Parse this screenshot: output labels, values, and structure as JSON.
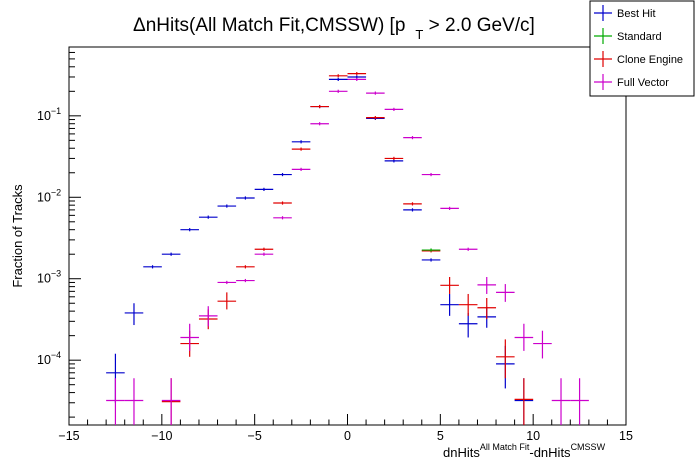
{
  "chart_data": {
    "type": "scatter",
    "title": "ΔnHits(All Match Fit,CMSSW) [p_T > 2.0 GeV/c]",
    "title_parts": {
      "delta": "Δ",
      "main": "nHits(All Match Fit,CMSSW) [p",
      "sub": "T",
      "tail": " > 2.0 GeV/c]"
    },
    "ylabel": "Fraction of Tracks",
    "xlabel": "dnHits^{All Match Fit}-dnHits^{CMSSW}",
    "xlabel_parts": {
      "a": "dnHits",
      "a_sup": "All Match Fit",
      "b": "-dnHits",
      "b_sup": "CMSSW"
    },
    "xlim": [
      -15,
      15
    ],
    "ylim": [
      1.6e-05,
      0.7
    ],
    "yscale": "log",
    "x_ticks": [
      "−15",
      "−10",
      "−5",
      "0",
      "5",
      "10",
      "15"
    ],
    "y_ticks": [
      {
        "base": "10",
        "exp": "−1"
      },
      {
        "base": "10",
        "exp": "−2"
      },
      {
        "base": "10",
        "exp": "−3"
      },
      {
        "base": "10",
        "exp": "−4"
      }
    ],
    "legend_position": "top-right",
    "series": [
      {
        "name": "Best Hit",
        "color": "#0000cc",
        "points": [
          {
            "x": -12.5,
            "y": 7e-05,
            "ylo": 3e-05,
            "yhi": 0.00012
          },
          {
            "x": -11.5,
            "y": 0.00038,
            "ylo": 0.00027,
            "yhi": 0.0005
          },
          {
            "x": -10.5,
            "y": 0.0014
          },
          {
            "x": -9.5,
            "y": 0.002
          },
          {
            "x": -8.5,
            "y": 0.004
          },
          {
            "x": -7.5,
            "y": 0.0057
          },
          {
            "x": -6.5,
            "y": 0.0078
          },
          {
            "x": -5.5,
            "y": 0.0098
          },
          {
            "x": -4.5,
            "y": 0.0125
          },
          {
            "x": -3.5,
            "y": 0.019
          },
          {
            "x": -2.5,
            "y": 0.048
          },
          {
            "x": -1.5,
            "y": 0.13
          },
          {
            "x": -0.5,
            "y": 0.28
          },
          {
            "x": 0.5,
            "y": 0.3
          },
          {
            "x": 1.5,
            "y": 0.093
          },
          {
            "x": 2.5,
            "y": 0.028
          },
          {
            "x": 3.5,
            "y": 0.007
          },
          {
            "x": 4.5,
            "y": 0.0017
          },
          {
            "x": 5.5,
            "y": 0.00048,
            "ylo": 0.00035,
            "yhi": 0.00065
          },
          {
            "x": 6.5,
            "y": 0.00028,
            "ylo": 0.00019,
            "yhi": 0.00038
          },
          {
            "x": 7.5,
            "y": 0.00034,
            "ylo": 0.00025,
            "yhi": 0.00045
          },
          {
            "x": 8.5,
            "y": 9e-05,
            "ylo": 4.5e-05,
            "yhi": 0.00015
          },
          {
            "x": 9.5,
            "y": 3.2e-05,
            "ylo": 1.6e-05,
            "yhi": 6e-05
          }
        ]
      },
      {
        "name": "Standard",
        "color": "#00aa00",
        "points": [
          {
            "x": 4.5,
            "y": 0.00225
          }
        ]
      },
      {
        "name": "Clone Engine",
        "color": "#e00000",
        "points": [
          {
            "x": -9.5,
            "y": 3.1e-05,
            "ylo": 1.6e-05,
            "yhi": 6e-05
          },
          {
            "x": -8.5,
            "y": 0.00016,
            "ylo": 0.00011,
            "yhi": 0.00023
          },
          {
            "x": -7.5,
            "y": 0.00032,
            "ylo": 0.00024,
            "yhi": 0.00042
          },
          {
            "x": -6.5,
            "y": 0.00053,
            "ylo": 0.00042,
            "yhi": 0.00068
          },
          {
            "x": -5.5,
            "y": 0.0014
          },
          {
            "x": -4.5,
            "y": 0.0023
          },
          {
            "x": -3.5,
            "y": 0.0085
          },
          {
            "x": -2.5,
            "y": 0.039
          },
          {
            "x": -1.5,
            "y": 0.13
          },
          {
            "x": -0.5,
            "y": 0.31
          },
          {
            "x": 0.5,
            "y": 0.33
          },
          {
            "x": 1.5,
            "y": 0.095
          },
          {
            "x": 2.5,
            "y": 0.03
          },
          {
            "x": 3.5,
            "y": 0.0083
          },
          {
            "x": 4.5,
            "y": 0.0022
          },
          {
            "x": 5.5,
            "y": 0.00083,
            "ylo": 0.00065,
            "yhi": 0.00105
          },
          {
            "x": 6.5,
            "y": 0.00048,
            "ylo": 0.00035,
            "yhi": 0.00065
          },
          {
            "x": 7.5,
            "y": 0.00044,
            "ylo": 0.00032,
            "yhi": 0.00058
          },
          {
            "x": 8.5,
            "y": 0.00011,
            "ylo": 6e-05,
            "yhi": 0.00018
          },
          {
            "x": 9.5,
            "y": 3.3e-05,
            "ylo": 1.6e-05,
            "yhi": 6e-05
          }
        ]
      },
      {
        "name": "Full Vector",
        "color": "#cc00cc",
        "points": [
          {
            "x": -12.5,
            "y": 3.2e-05,
            "ylo": 1.6e-05,
            "yhi": 6e-05
          },
          {
            "x": -11.5,
            "y": 3.2e-05,
            "ylo": 1.6e-05,
            "yhi": 6e-05
          },
          {
            "x": -9.5,
            "y": 3.2e-05,
            "ylo": 1.6e-05,
            "yhi": 6e-05
          },
          {
            "x": -8.5,
            "y": 0.00019,
            "ylo": 0.00013,
            "yhi": 0.00028
          },
          {
            "x": -7.5,
            "y": 0.00035,
            "ylo": 0.00026,
            "yhi": 0.00046
          },
          {
            "x": -6.5,
            "y": 0.0009
          },
          {
            "x": -5.5,
            "y": 0.00095
          },
          {
            "x": -4.5,
            "y": 0.002
          },
          {
            "x": -3.5,
            "y": 0.0056
          },
          {
            "x": -2.5,
            "y": 0.022
          },
          {
            "x": -1.5,
            "y": 0.08
          },
          {
            "x": -0.5,
            "y": 0.2
          },
          {
            "x": 0.5,
            "y": 0.28
          },
          {
            "x": 1.5,
            "y": 0.19
          },
          {
            "x": 2.5,
            "y": 0.12
          },
          {
            "x": 3.5,
            "y": 0.054
          },
          {
            "x": 4.5,
            "y": 0.019
          },
          {
            "x": 5.5,
            "y": 0.0073
          },
          {
            "x": 6.5,
            "y": 0.0023
          },
          {
            "x": 7.5,
            "y": 0.00084,
            "ylo": 0.00065,
            "yhi": 0.00105
          },
          {
            "x": 8.5,
            "y": 0.00068,
            "ylo": 0.00052,
            "yhi": 0.00086
          },
          {
            "x": 9.5,
            "y": 0.00019,
            "ylo": 0.00013,
            "yhi": 0.00028
          },
          {
            "x": 10.5,
            "y": 0.00016,
            "ylo": 0.000105,
            "yhi": 0.00023
          },
          {
            "x": 11.5,
            "y": 3.2e-05,
            "ylo": 1.6e-05,
            "yhi": 6e-05
          },
          {
            "x": 12.5,
            "y": 3.2e-05,
            "ylo": 1.6e-05,
            "yhi": 6e-05
          }
        ]
      }
    ]
  }
}
